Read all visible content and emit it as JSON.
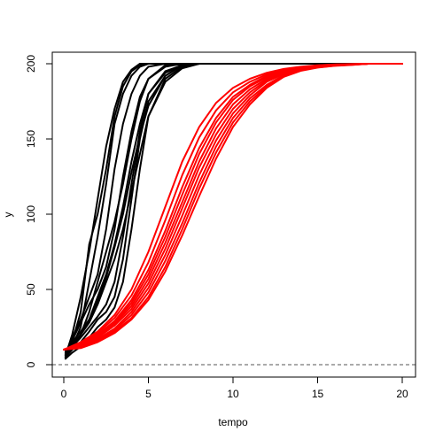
{
  "chart_data": {
    "type": "line",
    "title": "",
    "xlabel": "tempo",
    "ylabel": "y",
    "xlim": [
      0,
      20
    ],
    "ylim": [
      0,
      200
    ],
    "x_ticks": [
      0,
      5,
      10,
      15,
      20
    ],
    "y_ticks": [
      0,
      50,
      100,
      150,
      200
    ],
    "x_tick_labels": [
      "0",
      "5",
      "10",
      "15",
      "20"
    ],
    "y_tick_labels": [
      "0",
      "50",
      "100",
      "150",
      "200"
    ],
    "grid": false,
    "legend": "none",
    "reference_line": {
      "y": 0,
      "style": "dashed",
      "color": "#555555"
    },
    "group_colors": {
      "stochastic": "#000000",
      "deterministic": "#ff0000"
    },
    "groups": [
      {
        "color": "#000000",
        "series": [
          {
            "x": [
              0.1,
              0.5,
              1.0,
              1.5,
              2.0,
              2.5,
              3.0,
              3.5,
              4.0,
              4.5,
              5.0,
              6.0,
              8.0,
              20.0
            ],
            "values": [
              5,
              15,
              35,
              80,
              100,
              130,
              165,
              185,
              195,
              199,
              200,
              200,
              200,
              200
            ]
          },
          {
            "x": [
              0.1,
              0.5,
              1.0,
              1.5,
              2.0,
              2.5,
              3.0,
              3.5,
              4.0,
              4.5,
              5.0,
              6.0,
              8.0,
              20.0
            ],
            "values": [
              6,
              20,
              45,
              75,
              110,
              145,
              170,
              188,
              196,
              200,
              200,
              200,
              200,
              200
            ]
          },
          {
            "x": [
              0.1,
              0.5,
              1.0,
              1.5,
              2.0,
              2.5,
              3.0,
              3.5,
              4.0,
              4.5,
              5.0,
              6.0,
              8.0,
              20.0
            ],
            "values": [
              4,
              12,
              25,
              55,
              85,
              120,
              160,
              180,
              192,
              198,
              200,
              200,
              200,
              200
            ]
          },
          {
            "x": [
              0.1,
              0.5,
              1.0,
              1.5,
              2.0,
              2.5,
              3.0,
              3.5,
              4.0,
              4.5,
              5.0,
              6.0,
              8.0,
              20.0
            ],
            "values": [
              7,
              18,
              30,
              45,
              60,
              90,
              130,
              160,
              180,
              192,
              198,
              200,
              200,
              200
            ]
          },
          {
            "x": [
              0.1,
              0.5,
              1.0,
              1.5,
              2.0,
              2.5,
              3.0,
              3.5,
              4.0,
              4.5,
              5.0,
              6.0,
              8.0,
              20.0
            ],
            "values": [
              5,
              10,
              20,
              35,
              55,
              75,
              95,
              120,
              150,
              175,
              190,
              199,
              200,
              200
            ]
          },
          {
            "x": [
              0.1,
              0.5,
              1.0,
              1.5,
              2.0,
              2.5,
              3.0,
              3.5,
              4.0,
              4.5,
              5.0,
              6.0,
              7.0,
              8.0,
              20.0
            ],
            "values": [
              8,
              15,
              22,
              30,
              45,
              60,
              80,
              105,
              135,
              160,
              180,
              195,
              199,
              200,
              200
            ]
          },
          {
            "x": [
              0.1,
              0.5,
              1.0,
              1.5,
              2.0,
              2.5,
              3.0,
              3.5,
              4.0,
              4.5,
              5.0,
              6.0,
              7.0,
              8.0,
              20.0
            ],
            "values": [
              6,
              10,
              15,
              22,
              30,
              35,
              45,
              70,
              110,
              150,
              175,
              192,
              199,
              200,
              200
            ]
          },
          {
            "x": [
              0.1,
              0.5,
              1.0,
              1.5,
              2.0,
              2.5,
              3.0,
              3.5,
              4.0,
              4.5,
              5.0,
              6.0,
              7.0,
              8.0,
              20.0
            ],
            "values": [
              5,
              12,
              18,
              25,
              32,
              40,
              55,
              85,
              120,
              155,
              180,
              194,
              199,
              200,
              200
            ]
          },
          {
            "x": [
              0.1,
              0.5,
              1.0,
              1.5,
              2.0,
              2.5,
              3.0,
              3.5,
              4.0,
              4.5,
              5.0,
              6.0,
              7.0,
              8.0,
              20.0
            ],
            "values": [
              9,
              14,
              20,
              28,
              40,
              55,
              70,
              90,
              115,
              140,
              165,
              188,
              197,
              200,
              200
            ]
          },
          {
            "x": [
              0.1,
              0.5,
              1.0,
              1.5,
              2.0,
              2.5,
              3.0,
              3.5,
              4.0,
              4.5,
              5.0,
              6.0,
              7.0,
              8.0,
              20.0
            ],
            "values": [
              6,
              16,
              28,
              40,
              50,
              65,
              90,
              125,
              155,
              178,
              190,
              198,
              200,
              200,
              200
            ]
          },
          {
            "x": [
              0.1,
              0.5,
              1.0,
              1.5,
              2.0,
              2.5,
              3.0,
              3.5,
              4.0,
              4.5,
              5.0,
              6.0,
              7.0,
              8.0,
              20.0
            ],
            "values": [
              4,
              8,
              12,
              18,
              25,
              30,
              38,
              55,
              90,
              130,
              165,
              190,
              198,
              200,
              200
            ]
          },
          {
            "x": [
              0.1,
              0.5,
              1.0,
              1.5,
              2.0,
              2.5,
              3.0,
              3.5,
              4.0,
              4.5,
              5.0,
              6.0,
              7.0,
              8.0,
              20.0
            ],
            "values": [
              7,
              12,
              20,
              30,
              42,
              58,
              78,
              100,
              128,
              152,
              172,
              192,
              199,
              200,
              200
            ]
          }
        ]
      },
      {
        "color": "#ff0000",
        "series": [
          {
            "x": [
              0,
              1,
              2,
              3,
              4,
              5,
              6,
              7,
              8,
              9,
              10,
              11,
              12,
              13,
              14,
              15,
              16,
              17,
              18,
              20
            ],
            "values": [
              10,
              15,
              22,
              33,
              50,
              75,
              105,
              135,
              158,
              174,
              184,
              190,
              194,
              196.5,
              198,
              199,
              199.5,
              199.8,
              200,
              200
            ]
          },
          {
            "x": [
              0,
              1,
              2,
              3,
              4,
              5,
              6,
              7,
              8,
              9,
              10,
              11,
              12,
              13,
              14,
              15,
              16,
              17,
              18,
              20
            ],
            "values": [
              10,
              14,
              21,
              31,
              46,
              68,
              96,
              126,
              151,
              169,
              181,
              188,
              193,
              196,
              197.8,
              198.8,
              199.4,
              199.7,
              200,
              200
            ]
          },
          {
            "x": [
              0,
              1,
              2,
              3,
              4,
              5,
              6,
              7,
              8,
              9,
              10,
              11,
              12,
              13,
              14,
              15,
              16,
              17,
              18,
              20
            ],
            "values": [
              10,
              14,
              20,
              29,
              43,
              63,
              89,
              118,
              144,
              164,
              178,
              186,
              192,
              195.5,
              197.5,
              198.6,
              199.3,
              199.7,
              200,
              200
            ]
          },
          {
            "x": [
              0,
              1,
              2,
              3,
              4,
              5,
              6,
              7,
              8,
              9,
              10,
              11,
              12,
              13,
              14,
              15,
              16,
              17,
              18,
              20
            ],
            "values": [
              10,
              13,
              19,
              28,
              41,
              60,
              85,
              113,
              140,
              161,
              176,
              185,
              191,
              195,
              197.3,
              198.5,
              199.2,
              199.6,
              200,
              200
            ]
          },
          {
            "x": [
              0,
              1,
              2,
              3,
              4,
              5,
              6,
              7,
              8,
              9,
              10,
              11,
              12,
              13,
              14,
              15,
              16,
              17,
              18,
              20
            ],
            "values": [
              10,
              13,
              18,
              27,
              39,
              57,
              81,
              108,
              135,
              157,
              173,
              183,
              190,
              194.5,
              197,
              198.4,
              199.1,
              199.6,
              200,
              200
            ]
          },
          {
            "x": [
              0,
              1,
              2,
              3,
              4,
              5,
              6,
              7,
              8,
              9,
              10,
              11,
              12,
              13,
              14,
              15,
              16,
              17,
              18,
              20
            ],
            "values": [
              10,
              13,
              18,
              26,
              37,
              54,
              77,
              104,
              131,
              153,
              170,
              181,
              189,
              194,
              196.8,
              198.2,
              199,
              199.5,
              200,
              200
            ]
          },
          {
            "x": [
              0,
              1,
              2,
              3,
              4,
              5,
              6,
              7,
              8,
              9,
              10,
              11,
              12,
              13,
              14,
              15,
              16,
              17,
              18,
              20
            ],
            "values": [
              10,
              12,
              17,
              24,
              35,
              51,
              73,
              99,
              126,
              149,
              167,
              179,
              188,
              193.3,
              196.4,
              198,
              198.9,
              199.4,
              200,
              200
            ]
          },
          {
            "x": [
              0,
              1,
              2,
              3,
              4,
              5,
              6,
              7,
              8,
              9,
              10,
              11,
              12,
              13,
              14,
              15,
              16,
              17,
              18,
              20
            ],
            "values": [
              10,
              12,
              16,
              23,
              33,
              48,
              69,
              94,
              121,
              145,
              164,
              177,
              186,
              192.5,
              196,
              197.8,
              198.8,
              199.4,
              200,
              200
            ]
          },
          {
            "x": [
              0,
              1,
              2,
              3,
              4,
              5,
              6,
              7,
              8,
              9,
              10,
              11,
              12,
              13,
              14,
              15,
              16,
              17,
              18,
              20
            ],
            "values": [
              10,
              12,
              16,
              22,
              31,
              45,
              65,
              90,
              117,
              141,
              161,
              175,
              185,
              192,
              195.7,
              197.6,
              198.7,
              199.3,
              200,
              200
            ]
          },
          {
            "x": [
              0,
              1,
              2,
              3,
              4,
              5,
              6,
              7,
              8,
              9,
              10,
              11,
              12,
              13,
              14,
              15,
              16,
              17,
              18,
              20
            ],
            "values": [
              10,
              11,
              15,
              21,
              30,
              43,
              62,
              86,
              112,
              137,
              158,
              173,
              184,
              191.3,
              195.3,
              197.4,
              198.6,
              199.2,
              200,
              200
            ]
          }
        ]
      }
    ]
  }
}
